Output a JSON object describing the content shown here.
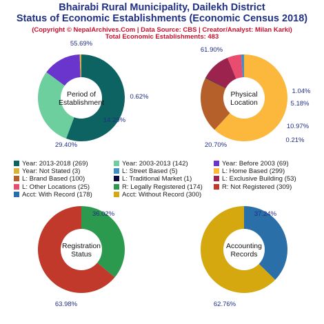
{
  "header": {
    "title_line1": "Bhairabi Rural Municipality, Dailekh District",
    "title_line2": "Status of Economic Establishments (Economic Census 2018)",
    "credit": "(Copyright © NepalArchives.Com | Data Source: CBS | Creator/Analyst: Milan Karki)",
    "total": "Total Economic Establishments: 483"
  },
  "chart_data": [
    {
      "type": "pie",
      "center_label": [
        "Period of",
        "Establishment"
      ],
      "slices": [
        {
          "label": "Year: 2013-2018",
          "count": 269,
          "percent": 55.69,
          "color": "#0d6361"
        },
        {
          "label": "Year: 2003-2013",
          "count": 142,
          "percent": 29.4,
          "color": "#6ecf9e"
        },
        {
          "label": "Year: Before 2003",
          "count": 69,
          "percent": 14.29,
          "color": "#6a35cc"
        },
        {
          "label": "Year: Not Stated",
          "count": 3,
          "percent": 0.62,
          "color": "#d9b23c"
        }
      ],
      "pct_labels": [
        "55.69%",
        "29.40%",
        "14.29%",
        "0.62%"
      ]
    },
    {
      "type": "pie",
      "center_label": [
        "Physical",
        "Location"
      ],
      "slices": [
        {
          "label": "L: Home Based",
          "count": 299,
          "percent": 61.9,
          "color": "#fbb83d"
        },
        {
          "label": "L: Brand Based",
          "count": 100,
          "percent": 20.7,
          "color": "#b5602b"
        },
        {
          "label": "L: Traditional Market",
          "count": 1,
          "percent": 0.21,
          "color": "#0a0a3c"
        },
        {
          "label": "L: Exclusive Building",
          "count": 53,
          "percent": 10.97,
          "color": "#9c234e"
        },
        {
          "label": "L: Other Locations",
          "count": 25,
          "percent": 5.18,
          "color": "#e84d6f"
        },
        {
          "label": "L: Street Based",
          "count": 5,
          "percent": 1.04,
          "color": "#3f8fc4"
        }
      ],
      "pct_labels": [
        "61.90%",
        "20.70%",
        "0.21%",
        "10.97%",
        "5.18%",
        "1.04%"
      ]
    },
    {
      "type": "pie",
      "center_label": [
        "Registration",
        "Status"
      ],
      "slices": [
        {
          "label": "R: Legally Registered",
          "count": 174,
          "percent": 36.02,
          "color": "#2b9a4f"
        },
        {
          "label": "R: Not Registered",
          "count": 309,
          "percent": 63.98,
          "color": "#c0392b"
        }
      ],
      "pct_labels": [
        "36.02%",
        "63.98%"
      ]
    },
    {
      "type": "pie",
      "center_label": [
        "Accounting",
        "Records"
      ],
      "slices": [
        {
          "label": "Acct: With Record",
          "count": 178,
          "percent": 37.24,
          "color": "#2a6fa8"
        },
        {
          "label": "Acct: Without Record",
          "count": 300,
          "percent": 62.76,
          "color": "#d4a80e"
        }
      ],
      "pct_labels": [
        "37.24%",
        "62.76%"
      ]
    }
  ],
  "legend": [
    {
      "text": "Year: 2013-2018 (269)",
      "color": "#0d6361"
    },
    {
      "text": "Year: 2003-2013 (142)",
      "color": "#6ecf9e"
    },
    {
      "text": "Year: Before 2003 (69)",
      "color": "#6a35cc"
    },
    {
      "text": "Year: Not Stated (3)",
      "color": "#d9b23c"
    },
    {
      "text": "L: Street Based (5)",
      "color": "#3f8fc4"
    },
    {
      "text": "L: Home Based (299)",
      "color": "#fbb83d"
    },
    {
      "text": "L: Brand Based (100)",
      "color": "#b5602b"
    },
    {
      "text": "L: Traditional Market (1)",
      "color": "#0a0a3c"
    },
    {
      "text": "L: Exclusive Building (53)",
      "color": "#9c234e"
    },
    {
      "text": "L: Other Locations (25)",
      "color": "#e84d6f"
    },
    {
      "text": "R: Legally Registered (174)",
      "color": "#2b9a4f"
    },
    {
      "text": "R: Not Registered (309)",
      "color": "#c0392b"
    },
    {
      "text": "Acct: With Record (178)",
      "color": "#2a6fa8"
    },
    {
      "text": "Acct: Without Record (300)",
      "color": "#d4a80e"
    }
  ],
  "colors": {
    "title": "#1f2f86",
    "credit": "#c8102e",
    "pct_label": "#1f2f86"
  }
}
